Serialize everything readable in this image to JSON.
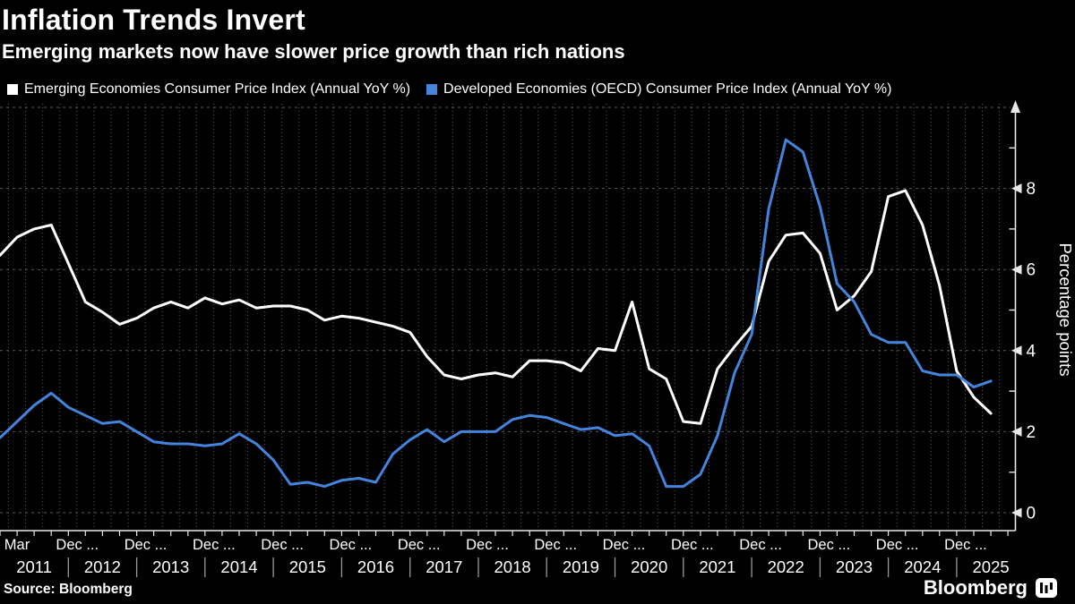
{
  "header": {
    "title": "Inflation Trends Invert",
    "subtitle": "Emerging markets now have slower price growth than rich nations"
  },
  "footer": {
    "source": "Source: Bloomberg",
    "brand": "Bloomberg"
  },
  "chart_data": {
    "type": "line",
    "frequency": "quarterly",
    "start_period": "Q4 2010",
    "end_period": "Q2 2025",
    "x_axis": {
      "first_tick_label": "Mar",
      "period_tick_label": "Dec ...",
      "years": [
        "2011",
        "2012",
        "2013",
        "2014",
        "2015",
        "2016",
        "2017",
        "2018",
        "2019",
        "2020",
        "2021",
        "2022",
        "2023",
        "2024",
        "2025"
      ]
    },
    "y_axis": {
      "label": "Percentage points",
      "min": 0,
      "max": 10,
      "major_ticks": [
        0,
        2,
        4,
        6,
        8
      ],
      "minor_ticks": [
        1,
        3,
        5,
        7,
        9
      ]
    },
    "grid": true,
    "legend_position": "top-left",
    "series": [
      {
        "name": "Emerging Economies Consumer Price Index (Annual YoY %)",
        "color": "#ffffff",
        "values": [
          6.35,
          6.8,
          7.0,
          7.1,
          6.15,
          5.2,
          4.95,
          4.65,
          4.8,
          5.05,
          5.2,
          5.05,
          5.3,
          5.15,
          5.25,
          5.05,
          5.1,
          5.1,
          5.0,
          4.75,
          4.85,
          4.8,
          4.7,
          4.6,
          4.45,
          3.85,
          3.4,
          3.3,
          3.4,
          3.45,
          3.35,
          3.75,
          3.75,
          3.7,
          3.5,
          4.05,
          4.0,
          5.2,
          3.55,
          3.3,
          2.25,
          2.2,
          3.55,
          4.1,
          4.6,
          6.2,
          6.85,
          6.9,
          6.4,
          5.0,
          5.35,
          5.95,
          7.8,
          7.95,
          7.1,
          5.6,
          3.5,
          2.85,
          2.45
        ]
      },
      {
        "name": "Developed Economies (OECD) Consumer Price Index (Annual YoY %)",
        "color": "#4484dc",
        "values": [
          1.85,
          2.25,
          2.65,
          2.95,
          2.6,
          2.4,
          2.2,
          2.25,
          2.0,
          1.75,
          1.7,
          1.7,
          1.65,
          1.7,
          1.95,
          1.7,
          1.3,
          0.7,
          0.75,
          0.65,
          0.8,
          0.85,
          0.75,
          1.45,
          1.8,
          2.05,
          1.75,
          2.0,
          2.0,
          2.0,
          2.3,
          2.4,
          2.35,
          2.2,
          2.05,
          2.1,
          1.9,
          1.95,
          1.65,
          0.65,
          0.65,
          0.95,
          1.9,
          3.45,
          4.4,
          7.5,
          9.2,
          8.9,
          7.55,
          5.65,
          5.2,
          4.4,
          4.2,
          4.2,
          3.5,
          3.4,
          3.4,
          3.1,
          3.25
        ]
      }
    ],
    "colors": {
      "background": "#000000",
      "grid": "#5a5a5a",
      "axis": "#e8e8e8"
    }
  }
}
